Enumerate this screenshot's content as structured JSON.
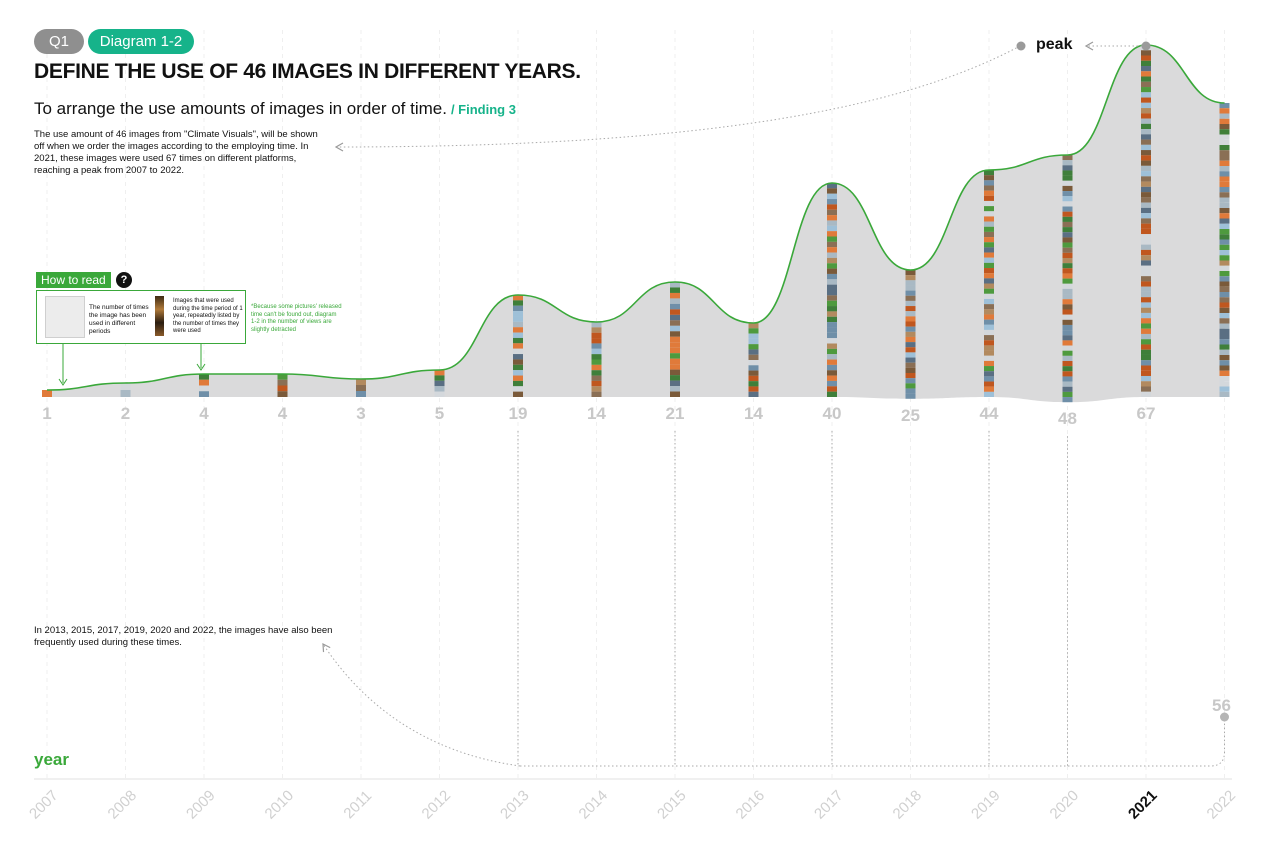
{
  "header": {
    "question_tag": "Q1",
    "diagram_tag": "Diagram 1-2",
    "title": "DEFINE THE USE OF 46 IMAGES IN DIFFERENT YEARS.",
    "subtitle": "To arrange the use amounts of images in order of time.",
    "finding_tag": "/ Finding 3"
  },
  "notes": {
    "intro": "The use amount of 46 images  from \"Climate Visuals\", will be shown off when we order the images according to the employing time. In 2021, these images were used 67 times on different platforms, reaching a peak from 2007 to 2022.",
    "frequent": "In 2013, 2015, 2017, 2019, 2020 and 2022, the images have also been frequently used during these times."
  },
  "how_to_read": {
    "label": "How to read",
    "question_mark": "?",
    "shape_text": "The number of times the image has been used in different periods",
    "strip_text": "Images that were used during the time period of 1 year, repeatedly listed by the number of times they were used",
    "footnote": "*Because some pictures' released time can't be found out, diagram 1-2 in the number of views are slightly detracted"
  },
  "annotations": {
    "peak": "peak",
    "axis_name": "year"
  },
  "colors": {
    "accent_green": "#3aa83a",
    "teal": "#16b38a",
    "fill_grey": "#dadadb",
    "value_grey": "#c8c8c8",
    "year_grey": "#d0d0d0",
    "highlight_year": "#111111",
    "guide_grey": "#a9a9a9"
  },
  "chart_data": {
    "type": "area",
    "x": [
      "2007",
      "2008",
      "2009",
      "2010",
      "2011",
      "2012",
      "2013",
      "2014",
      "2015",
      "2016",
      "2017",
      "2018",
      "2019",
      "2020",
      "2021",
      "2022"
    ],
    "values": [
      1,
      2,
      4,
      4,
      3,
      5,
      19,
      14,
      21,
      14,
      40,
      25,
      44,
      48,
      67,
      56
    ],
    "value_labels": [
      "1",
      "2",
      "4",
      "4",
      "3",
      "5",
      "19",
      "14",
      "21",
      "14",
      "40",
      "25",
      "44",
      "48",
      "67",
      "56"
    ],
    "highlight_year": "2021",
    "highlight_label": "2021",
    "frequent_years": [
      "2013",
      "2015",
      "2017",
      "2019",
      "2020",
      "2022"
    ],
    "xlabel": "year",
    "ylabel": "",
    "ylim": [
      0,
      67
    ],
    "grid": true
  }
}
